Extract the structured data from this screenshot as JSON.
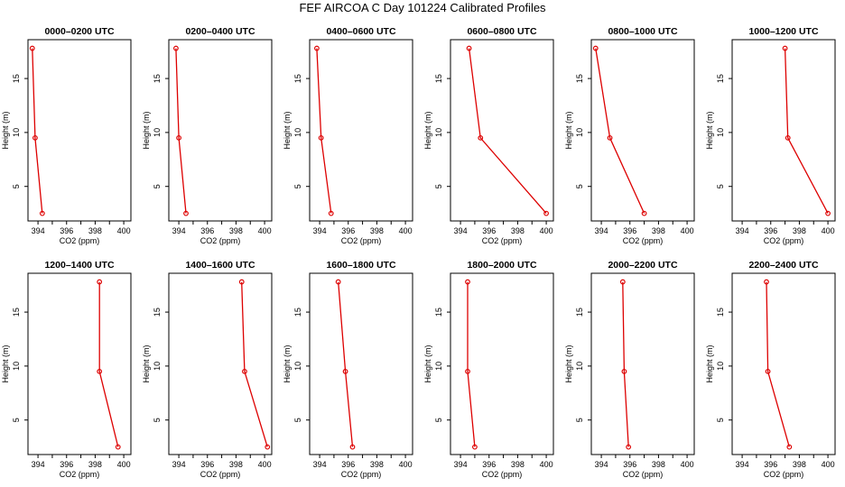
{
  "title": "FEF AIRCOA C  Day 101224  Calibrated Profiles",
  "chart_data": [
    {
      "type": "line",
      "title": "0000–0200 UTC",
      "xlabel": "CO2 (ppm)",
      "ylabel": "Height (m)",
      "xlim": [
        393.3,
        400.5
      ],
      "ylim": [
        1.8,
        18.6
      ],
      "x_ticks": [
        "394",
        "396",
        "398",
        "400"
      ],
      "y_ticks": [
        "5",
        "10",
        "15"
      ],
      "series": [
        {
          "x": [
            393.6,
            393.8,
            394.3
          ],
          "y": [
            17.8,
            9.5,
            2.5
          ],
          "color": "#dd0000"
        }
      ]
    },
    {
      "type": "line",
      "title": "0200–0400 UTC",
      "xlabel": "CO2 (ppm)",
      "ylabel": "Height (m)",
      "xlim": [
        393.3,
        400.5
      ],
      "ylim": [
        1.8,
        18.6
      ],
      "x_ticks": [
        "394",
        "396",
        "398",
        "400"
      ],
      "y_ticks": [
        "5",
        "10",
        "15"
      ],
      "series": [
        {
          "x": [
            393.8,
            394.0,
            394.5
          ],
          "y": [
            17.8,
            9.5,
            2.5
          ],
          "color": "#dd0000"
        }
      ]
    },
    {
      "type": "line",
      "title": "0400–0600 UTC",
      "xlabel": "CO2 (ppm)",
      "ylabel": "Height (m)",
      "xlim": [
        393.3,
        400.5
      ],
      "ylim": [
        1.8,
        18.6
      ],
      "x_ticks": [
        "394",
        "396",
        "398",
        "400"
      ],
      "y_ticks": [
        "5",
        "10",
        "15"
      ],
      "series": [
        {
          "x": [
            393.8,
            394.1,
            394.8
          ],
          "y": [
            17.8,
            9.5,
            2.5
          ],
          "color": "#dd0000"
        }
      ]
    },
    {
      "type": "line",
      "title": "0600–0800 UTC",
      "xlabel": "CO2 (ppm)",
      "ylabel": "Height (m)",
      "xlim": [
        393.3,
        400.5
      ],
      "ylim": [
        1.8,
        18.6
      ],
      "x_ticks": [
        "394",
        "396",
        "398",
        "400"
      ],
      "y_ticks": [
        "5",
        "10",
        "15"
      ],
      "series": [
        {
          "x": [
            394.6,
            395.4,
            400.0
          ],
          "y": [
            17.8,
            9.5,
            2.5
          ],
          "color": "#dd0000"
        }
      ]
    },
    {
      "type": "line",
      "title": "0800–1000 UTC",
      "xlabel": "CO2 (ppm)",
      "ylabel": "Height (m)",
      "xlim": [
        393.3,
        400.5
      ],
      "ylim": [
        1.8,
        18.6
      ],
      "x_ticks": [
        "394",
        "396",
        "398",
        "400"
      ],
      "y_ticks": [
        "5",
        "10",
        "15"
      ],
      "series": [
        {
          "x": [
            393.6,
            394.6,
            397.0
          ],
          "y": [
            17.8,
            9.5,
            2.5
          ],
          "color": "#dd0000"
        }
      ]
    },
    {
      "type": "line",
      "title": "1000–1200 UTC",
      "xlabel": "CO2 (ppm)",
      "ylabel": "Height (m)",
      "xlim": [
        393.3,
        400.5
      ],
      "ylim": [
        1.8,
        18.6
      ],
      "x_ticks": [
        "394",
        "396",
        "398",
        "400"
      ],
      "y_ticks": [
        "5",
        "10",
        "15"
      ],
      "series": [
        {
          "x": [
            397.0,
            397.2,
            400.0
          ],
          "y": [
            17.8,
            9.5,
            2.5
          ],
          "color": "#dd0000"
        }
      ]
    },
    {
      "type": "line",
      "title": "1200–1400 UTC",
      "xlabel": "CO2 (ppm)",
      "ylabel": "Height (m)",
      "xlim": [
        393.3,
        400.5
      ],
      "ylim": [
        1.8,
        18.6
      ],
      "x_ticks": [
        "394",
        "396",
        "398",
        "400"
      ],
      "y_ticks": [
        "5",
        "10",
        "15"
      ],
      "series": [
        {
          "x": [
            398.3,
            398.3,
            399.6
          ],
          "y": [
            17.8,
            9.5,
            2.5
          ],
          "color": "#dd0000"
        }
      ]
    },
    {
      "type": "line",
      "title": "1400–1600 UTC",
      "xlabel": "CO2 (ppm)",
      "ylabel": "Height (m)",
      "xlim": [
        393.3,
        400.5
      ],
      "ylim": [
        1.8,
        18.6
      ],
      "x_ticks": [
        "394",
        "396",
        "398",
        "400"
      ],
      "y_ticks": [
        "5",
        "10",
        "15"
      ],
      "series": [
        {
          "x": [
            398.4,
            398.6,
            400.2
          ],
          "y": [
            17.8,
            9.5,
            2.5
          ],
          "color": "#dd0000"
        }
      ]
    },
    {
      "type": "line",
      "title": "1600–1800 UTC",
      "xlabel": "CO2 (ppm)",
      "ylabel": "Height (m)",
      "xlim": [
        393.3,
        400.5
      ],
      "ylim": [
        1.8,
        18.6
      ],
      "x_ticks": [
        "394",
        "396",
        "398",
        "400"
      ],
      "y_ticks": [
        "5",
        "10",
        "15"
      ],
      "series": [
        {
          "x": [
            395.3,
            395.8,
            396.3
          ],
          "y": [
            17.8,
            9.5,
            2.5
          ],
          "color": "#dd0000"
        }
      ]
    },
    {
      "type": "line",
      "title": "1800–2000 UTC",
      "xlabel": "CO2 (ppm)",
      "ylabel": "Height (m)",
      "xlim": [
        393.3,
        400.5
      ],
      "ylim": [
        1.8,
        18.6
      ],
      "x_ticks": [
        "394",
        "396",
        "398",
        "400"
      ],
      "y_ticks": [
        "5",
        "10",
        "15"
      ],
      "series": [
        {
          "x": [
            394.5,
            394.5,
            395.0
          ],
          "y": [
            17.8,
            9.5,
            2.5
          ],
          "color": "#dd0000"
        }
      ]
    },
    {
      "type": "line",
      "title": "2000–2200 UTC",
      "xlabel": "CO2 (ppm)",
      "ylabel": "Height (m)",
      "xlim": [
        393.3,
        400.5
      ],
      "ylim": [
        1.8,
        18.6
      ],
      "x_ticks": [
        "394",
        "396",
        "398",
        "400"
      ],
      "y_ticks": [
        "5",
        "10",
        "15"
      ],
      "series": [
        {
          "x": [
            395.5,
            395.6,
            395.9
          ],
          "y": [
            17.8,
            9.5,
            2.5
          ],
          "color": "#dd0000"
        }
      ]
    },
    {
      "type": "line",
      "title": "2200–2400 UTC",
      "xlabel": "CO2 (ppm)",
      "ylabel": "Height (m)",
      "xlim": [
        393.3,
        400.5
      ],
      "ylim": [
        1.8,
        18.6
      ],
      "x_ticks": [
        "394",
        "396",
        "398",
        "400"
      ],
      "y_ticks": [
        "5",
        "10",
        "15"
      ],
      "series": [
        {
          "x": [
            395.7,
            395.8,
            397.3
          ],
          "y": [
            17.8,
            9.5,
            2.5
          ],
          "color": "#dd0000"
        }
      ]
    }
  ]
}
